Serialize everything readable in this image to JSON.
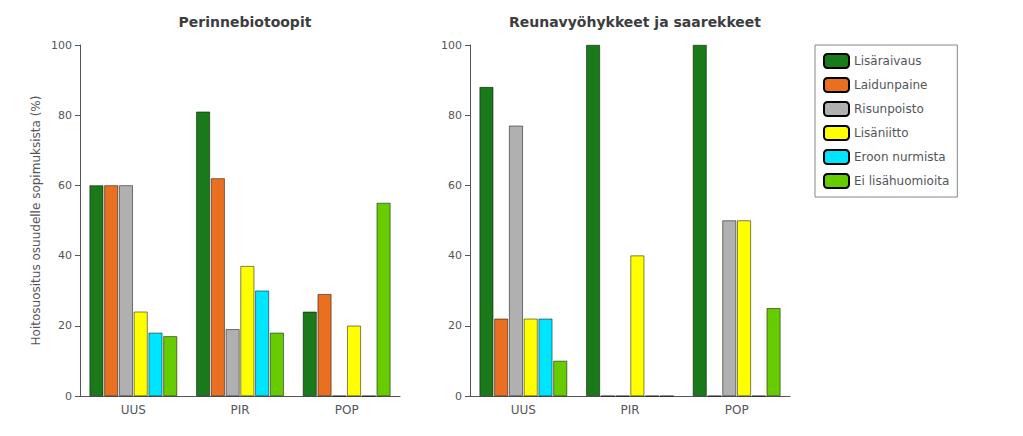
{
  "chart_data": [
    {
      "type": "bar",
      "title": "Perinnebiotoopit",
      "ylabel": "Hoitosuositus osuudelle sopimuksista (%)",
      "categories": [
        "UUS",
        "PIR",
        "POP"
      ],
      "series": [
        {
          "name": "Lisäraivaus",
          "color": "#1a7a1a",
          "values": [
            60,
            81,
            24
          ]
        },
        {
          "name": "Laidunpaine",
          "color": "#e87020",
          "values": [
            60,
            62,
            29
          ]
        },
        {
          "name": "Risunpoisto",
          "color": "#b0b0b0",
          "values": [
            60,
            19,
            0
          ]
        },
        {
          "name": "Lisäniitto",
          "color": "#ffff00",
          "values": [
            24,
            37,
            20
          ]
        },
        {
          "name": "Eroon nurmista",
          "color": "#00e5ff",
          "values": [
            18,
            30,
            0
          ]
        },
        {
          "name": "Ei lisähuomioita",
          "color": "#66cc00",
          "values": [
            17,
            18,
            55
          ]
        }
      ],
      "ylim": [
        0,
        100
      ],
      "yticks": [
        0,
        20,
        40,
        60,
        80,
        100
      ],
      "grid": false
    },
    {
      "type": "bar",
      "title": "Reunavyöhykkeet ja saarekkeet",
      "categories": [
        "UUS",
        "PIR",
        "POP"
      ],
      "series": [
        {
          "name": "Lisäraivaus",
          "color": "#1a7a1a",
          "values": [
            88,
            100,
            100
          ]
        },
        {
          "name": "Laidunpaine",
          "color": "#e87020",
          "values": [
            22,
            0,
            0
          ]
        },
        {
          "name": "Risunpoisto",
          "color": "#b0b0b0",
          "values": [
            77,
            0,
            50
          ]
        },
        {
          "name": "Lisäniitto",
          "color": "#ffff00",
          "values": [
            22,
            40,
            50
          ]
        },
        {
          "name": "Eroon nurmista",
          "color": "#00e5ff",
          "values": [
            22,
            0,
            0
          ]
        },
        {
          "name": "Ei lisähuomioita",
          "color": "#66cc00",
          "values": [
            10,
            0,
            25
          ]
        }
      ],
      "ylim": [
        0,
        100
      ],
      "yticks": [
        0,
        20,
        40,
        60,
        80,
        100
      ],
      "grid": false,
      "legend": "right"
    }
  ]
}
